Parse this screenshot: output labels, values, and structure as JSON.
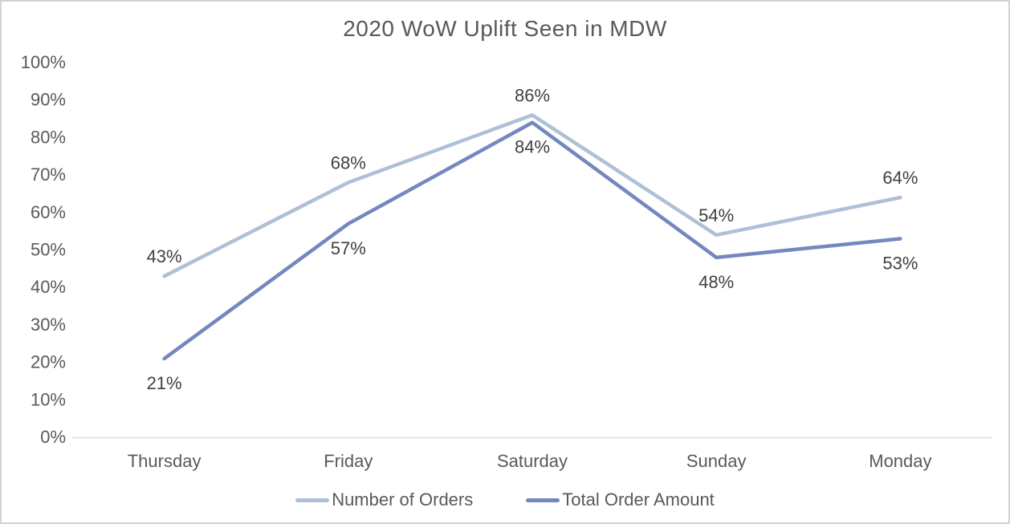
{
  "chart_data": {
    "type": "line",
    "title": "2020 WoW Uplift Seen in MDW",
    "categories": [
      "Thursday",
      "Friday",
      "Saturday",
      "Sunday",
      "Monday"
    ],
    "series": [
      {
        "name": "Number of Orders",
        "color": "#aec0d7",
        "values": [
          43,
          68,
          86,
          54,
          64
        ],
        "data_labels": [
          "43%",
          "68%",
          "86%",
          "54%",
          "64%"
        ],
        "label_position": "above"
      },
      {
        "name": "Total Order Amount",
        "color": "#7487bf",
        "values": [
          21,
          57,
          84,
          48,
          53
        ],
        "data_labels": [
          "21%",
          "57%",
          "84%",
          "48%",
          "53%"
        ],
        "label_position": "below"
      }
    ],
    "y_axis": {
      "min": 0,
      "max": 100,
      "step": 10,
      "tick_labels": [
        "0%",
        "10%",
        "20%",
        "30%",
        "40%",
        "50%",
        "60%",
        "70%",
        "80%",
        "90%",
        "100%"
      ]
    },
    "x_axis": {
      "line_color": "#d9d9d9"
    },
    "grid": false,
    "legend_position": "bottom",
    "colors": {
      "title_text": "#595959",
      "axis_text": "#595959",
      "data_label_text": "#404040",
      "frame_border": "#d2d2d2",
      "background": "#ffffff"
    }
  }
}
